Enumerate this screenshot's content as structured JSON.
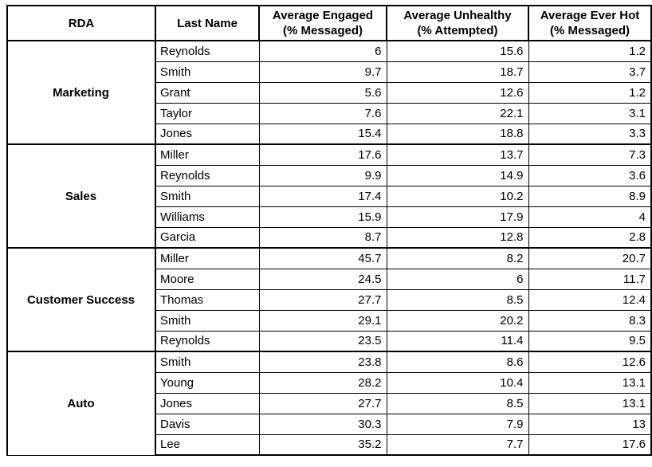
{
  "table": {
    "headers": {
      "rda": "RDA",
      "last_name": "Last Name",
      "engaged_line1": "Average Engaged",
      "engaged_line2": "(% Messaged)",
      "unhealthy_line1": "Average Unhealthy",
      "unhealthy_line2": "(% Attempted)",
      "everhot_line1": "Average Ever Hot",
      "everhot_line2": "(% Messaged)"
    },
    "groups": [
      {
        "name": "Marketing",
        "rows": [
          {
            "last_name": "Reynolds",
            "engaged": "6",
            "unhealthy": "15.6",
            "ever_hot": "1.2"
          },
          {
            "last_name": "Smith",
            "engaged": "9.7",
            "unhealthy": "18.7",
            "ever_hot": "3.7"
          },
          {
            "last_name": "Grant",
            "engaged": "5.6",
            "unhealthy": "12.6",
            "ever_hot": "1.2"
          },
          {
            "last_name": "Taylor",
            "engaged": "7.6",
            "unhealthy": "22.1",
            "ever_hot": "3.1"
          },
          {
            "last_name": "Jones",
            "engaged": "15.4",
            "unhealthy": "18.8",
            "ever_hot": "3.3"
          }
        ]
      },
      {
        "name": "Sales",
        "rows": [
          {
            "last_name": "Miller",
            "engaged": "17.6",
            "unhealthy": "13.7",
            "ever_hot": "7.3"
          },
          {
            "last_name": "Reynolds",
            "engaged": "9.9",
            "unhealthy": "14.9",
            "ever_hot": "3.6"
          },
          {
            "last_name": "Smith",
            "engaged": "17.4",
            "unhealthy": "10.2",
            "ever_hot": "8.9"
          },
          {
            "last_name": "Williams",
            "engaged": "15.9",
            "unhealthy": "17.9",
            "ever_hot": "4"
          },
          {
            "last_name": "Garcia",
            "engaged": "8.7",
            "unhealthy": "12.8",
            "ever_hot": "2.8"
          }
        ]
      },
      {
        "name": "Customer Success",
        "rows": [
          {
            "last_name": "Miller",
            "engaged": "45.7",
            "unhealthy": "8.2",
            "ever_hot": "20.7"
          },
          {
            "last_name": "Moore",
            "engaged": "24.5",
            "unhealthy": "6",
            "ever_hot": "11.7"
          },
          {
            "last_name": "Thomas",
            "engaged": "27.7",
            "unhealthy": "8.5",
            "ever_hot": "12.4"
          },
          {
            "last_name": "Smith",
            "engaged": "29.1",
            "unhealthy": "20.2",
            "ever_hot": "8.3"
          },
          {
            "last_name": "Reynolds",
            "engaged": "23.5",
            "unhealthy": "11.4",
            "ever_hot": "9.5"
          }
        ]
      },
      {
        "name": "Auto",
        "rows": [
          {
            "last_name": "Smith",
            "engaged": "23.8",
            "unhealthy": "8.6",
            "ever_hot": "12.6"
          },
          {
            "last_name": "Young",
            "engaged": "28.2",
            "unhealthy": "10.4",
            "ever_hot": "13.1"
          },
          {
            "last_name": "Jones",
            "engaged": "27.7",
            "unhealthy": "8.5",
            "ever_hot": "13.1"
          },
          {
            "last_name": "Davis",
            "engaged": "30.3",
            "unhealthy": "7.9",
            "ever_hot": "13"
          },
          {
            "last_name": "Lee",
            "engaged": "35.2",
            "unhealthy": "7.7",
            "ever_hot": "17.6"
          }
        ]
      }
    ]
  }
}
